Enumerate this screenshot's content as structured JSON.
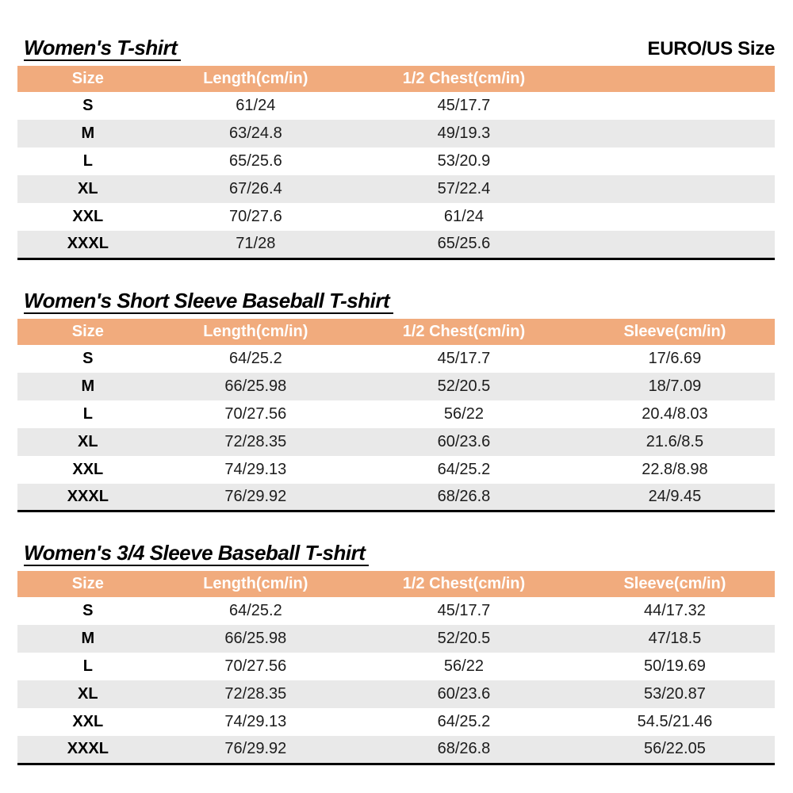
{
  "header": {
    "euro_us_size_label": "EURO/US Size"
  },
  "colors": {
    "header_bg": "#F1AB7D",
    "header_text": "#FFFFFF",
    "stripe_bg": "#E9E9E9",
    "rule_color": "#000000"
  },
  "tables": [
    {
      "title": "Women's T-shirt",
      "columns": [
        "Size",
        "Length(cm/in)",
        "1/2 Chest(cm/in)"
      ],
      "rows": [
        [
          "S",
          "61/24",
          "45/17.7"
        ],
        [
          "M",
          "63/24.8",
          "49/19.3"
        ],
        [
          "L",
          "65/25.6",
          "53/20.9"
        ],
        [
          "XL",
          "67/26.4",
          "57/22.4"
        ],
        [
          "XXL",
          "70/27.6",
          "61/24"
        ],
        [
          "XXXL",
          "71/28",
          "65/25.6"
        ]
      ]
    },
    {
      "title": "Women's Short Sleeve Baseball T-shirt",
      "columns": [
        "Size",
        "Length(cm/in)",
        "1/2 Chest(cm/in)",
        "Sleeve(cm/in)"
      ],
      "rows": [
        [
          "S",
          "64/25.2",
          "45/17.7",
          "17/6.69"
        ],
        [
          "M",
          "66/25.98",
          "52/20.5",
          "18/7.09"
        ],
        [
          "L",
          "70/27.56",
          "56/22",
          "20.4/8.03"
        ],
        [
          "XL",
          "72/28.35",
          "60/23.6",
          "21.6/8.5"
        ],
        [
          "XXL",
          "74/29.13",
          "64/25.2",
          "22.8/8.98"
        ],
        [
          "XXXL",
          "76/29.92",
          "68/26.8",
          "24/9.45"
        ]
      ]
    },
    {
      "title": "Women's 3/4 Sleeve Baseball T-shirt",
      "columns": [
        "Size",
        "Length(cm/in)",
        "1/2 Chest(cm/in)",
        "Sleeve(cm/in)"
      ],
      "rows": [
        [
          "S",
          "64/25.2",
          "45/17.7",
          "44/17.32"
        ],
        [
          "M",
          "66/25.98",
          "52/20.5",
          "47/18.5"
        ],
        [
          "L",
          "70/27.56",
          "56/22",
          "50/19.69"
        ],
        [
          "XL",
          "72/28.35",
          "60/23.6",
          "53/20.87"
        ],
        [
          "XXL",
          "74/29.13",
          "64/25.2",
          "54.5/21.46"
        ],
        [
          "XXXL",
          "76/29.92",
          "68/26.8",
          "56/22.05"
        ]
      ]
    }
  ]
}
